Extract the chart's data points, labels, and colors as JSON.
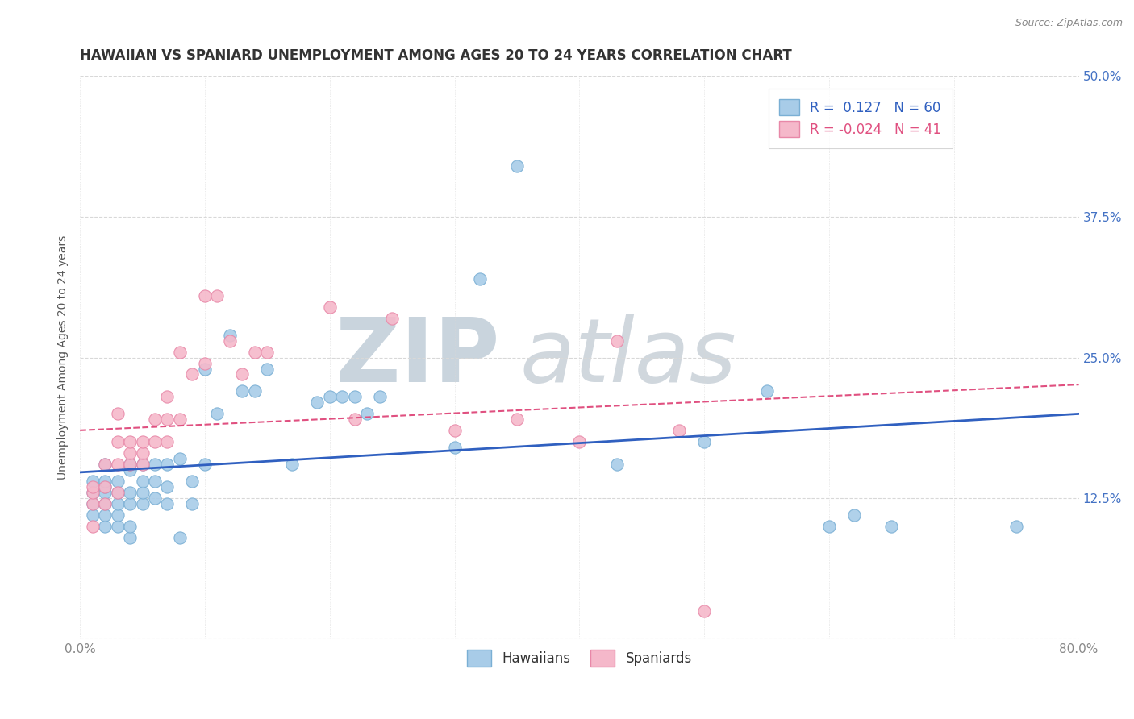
{
  "title": "HAWAIIAN VS SPANIARD UNEMPLOYMENT AMONG AGES 20 TO 24 YEARS CORRELATION CHART",
  "source": "Source: ZipAtlas.com",
  "ylabel": "Unemployment Among Ages 20 to 24 years",
  "xlim": [
    0.0,
    0.8
  ],
  "ylim": [
    0.0,
    0.5
  ],
  "xticks": [
    0.0,
    0.1,
    0.2,
    0.3,
    0.4,
    0.5,
    0.6,
    0.7,
    0.8
  ],
  "yticks": [
    0.0,
    0.125,
    0.25,
    0.375,
    0.5
  ],
  "hawaiian_R": 0.127,
  "hawaiian_N": 60,
  "spaniard_R": -0.024,
  "spaniard_N": 41,
  "hawaiian_color": "#a8cce8",
  "spaniard_color": "#f5b8ca",
  "hawaiian_edge_color": "#7aafd4",
  "spaniard_edge_color": "#e888a8",
  "trend_hawaiian_color": "#3060c0",
  "trend_spaniard_color": "#e05080",
  "watermark_ZIP_color": "#c0cdd8",
  "watermark_atlas_color": "#c8d0d8",
  "label_color": "#4472c4",
  "background_color": "#ffffff",
  "grid_color": "#d8d8d8",
  "hawaiian_x": [
    0.01,
    0.01,
    0.01,
    0.01,
    0.02,
    0.02,
    0.02,
    0.02,
    0.02,
    0.02,
    0.02,
    0.03,
    0.03,
    0.03,
    0.03,
    0.03,
    0.04,
    0.04,
    0.04,
    0.04,
    0.04,
    0.04,
    0.05,
    0.05,
    0.05,
    0.05,
    0.06,
    0.06,
    0.06,
    0.07,
    0.07,
    0.07,
    0.08,
    0.08,
    0.09,
    0.09,
    0.1,
    0.1,
    0.11,
    0.12,
    0.13,
    0.14,
    0.15,
    0.17,
    0.19,
    0.2,
    0.21,
    0.22,
    0.23,
    0.24,
    0.3,
    0.32,
    0.35,
    0.43,
    0.5,
    0.55,
    0.6,
    0.62,
    0.65,
    0.75
  ],
  "hawaiian_y": [
    0.11,
    0.12,
    0.13,
    0.14,
    0.1,
    0.11,
    0.12,
    0.13,
    0.135,
    0.14,
    0.155,
    0.1,
    0.11,
    0.12,
    0.13,
    0.14,
    0.09,
    0.1,
    0.12,
    0.13,
    0.15,
    0.155,
    0.12,
    0.13,
    0.14,
    0.155,
    0.125,
    0.14,
    0.155,
    0.12,
    0.135,
    0.155,
    0.09,
    0.16,
    0.12,
    0.14,
    0.155,
    0.24,
    0.2,
    0.27,
    0.22,
    0.22,
    0.24,
    0.155,
    0.21,
    0.215,
    0.215,
    0.215,
    0.2,
    0.215,
    0.17,
    0.32,
    0.42,
    0.155,
    0.175,
    0.22,
    0.1,
    0.11,
    0.1,
    0.1
  ],
  "spaniard_x": [
    0.01,
    0.01,
    0.01,
    0.01,
    0.02,
    0.02,
    0.02,
    0.03,
    0.03,
    0.03,
    0.03,
    0.04,
    0.04,
    0.04,
    0.05,
    0.05,
    0.05,
    0.06,
    0.06,
    0.07,
    0.07,
    0.07,
    0.08,
    0.08,
    0.09,
    0.1,
    0.1,
    0.11,
    0.12,
    0.13,
    0.14,
    0.15,
    0.2,
    0.22,
    0.25,
    0.3,
    0.35,
    0.4,
    0.43,
    0.48,
    0.5
  ],
  "spaniard_y": [
    0.1,
    0.12,
    0.13,
    0.135,
    0.12,
    0.135,
    0.155,
    0.13,
    0.155,
    0.175,
    0.2,
    0.155,
    0.165,
    0.175,
    0.155,
    0.165,
    0.175,
    0.175,
    0.195,
    0.175,
    0.195,
    0.215,
    0.195,
    0.255,
    0.235,
    0.245,
    0.305,
    0.305,
    0.265,
    0.235,
    0.255,
    0.255,
    0.295,
    0.195,
    0.285,
    0.185,
    0.195,
    0.175,
    0.265,
    0.185,
    0.025
  ],
  "title_fontsize": 12,
  "axis_label_fontsize": 10,
  "tick_fontsize": 11,
  "legend_fontsize": 12
}
